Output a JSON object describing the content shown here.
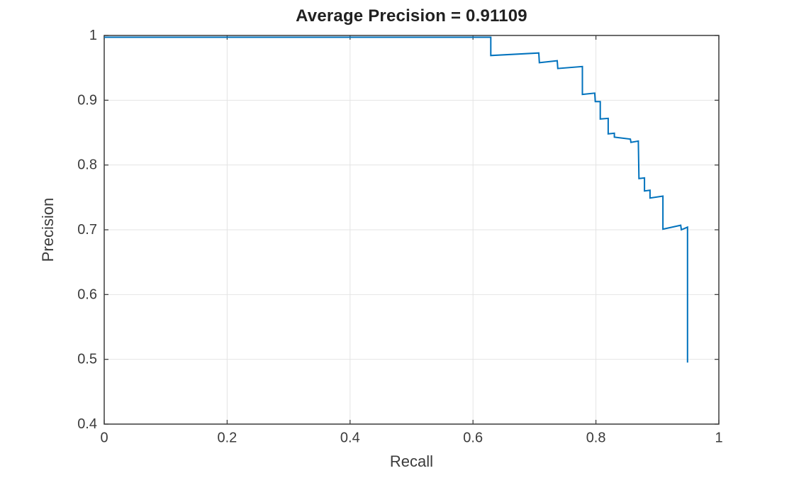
{
  "figure": {
    "background": "#ffffff"
  },
  "colors": {
    "curve": "#0072BD",
    "axis": "#3b3b3b",
    "grid": "#e4e4e4",
    "text": "#3b3b3b",
    "title": "#212121",
    "background": "#ffffff"
  },
  "chart_data": {
    "type": "line",
    "title": "Average Precision = 0.91109",
    "average_precision": 0.91109,
    "xlabel": "Recall",
    "ylabel": "Precision",
    "xlim": [
      0,
      1
    ],
    "ylim": [
      0.4,
      1
    ],
    "grid": true,
    "box": true,
    "legend": "none",
    "x_ticks": [
      0,
      0.2,
      0.4,
      0.6,
      0.8,
      1
    ],
    "x_tick_labels": [
      "0",
      "0.2",
      "0.4",
      "0.6",
      "0.8",
      "1"
    ],
    "y_ticks": [
      0.4,
      0.5,
      0.6,
      0.7,
      0.8,
      0.9,
      1
    ],
    "y_tick_labels": [
      "0.4",
      "0.5",
      "0.6",
      "0.7",
      "0.8",
      "0.9",
      "1"
    ],
    "series": [
      {
        "name": "precision-recall-curve",
        "color": "#0072BD",
        "x": [
          0,
          0.629,
          0.629,
          0.707,
          0.708,
          0.737,
          0.738,
          0.778,
          0.778,
          0.798,
          0.799,
          0.807,
          0.807,
          0.82,
          0.82,
          0.83,
          0.83,
          0.856,
          0.857,
          0.869,
          0.87,
          0.879,
          0.879,
          0.888,
          0.888,
          0.909,
          0.909,
          0.938,
          0.939,
          0.949,
          0.949
        ],
        "y": [
          1.0,
          1.0,
          0.969,
          0.973,
          0.958,
          0.961,
          0.949,
          0.952,
          0.909,
          0.911,
          0.898,
          0.898,
          0.871,
          0.872,
          0.848,
          0.849,
          0.843,
          0.84,
          0.835,
          0.837,
          0.779,
          0.78,
          0.76,
          0.761,
          0.749,
          0.752,
          0.701,
          0.707,
          0.7,
          0.704,
          0.495
        ]
      }
    ]
  }
}
